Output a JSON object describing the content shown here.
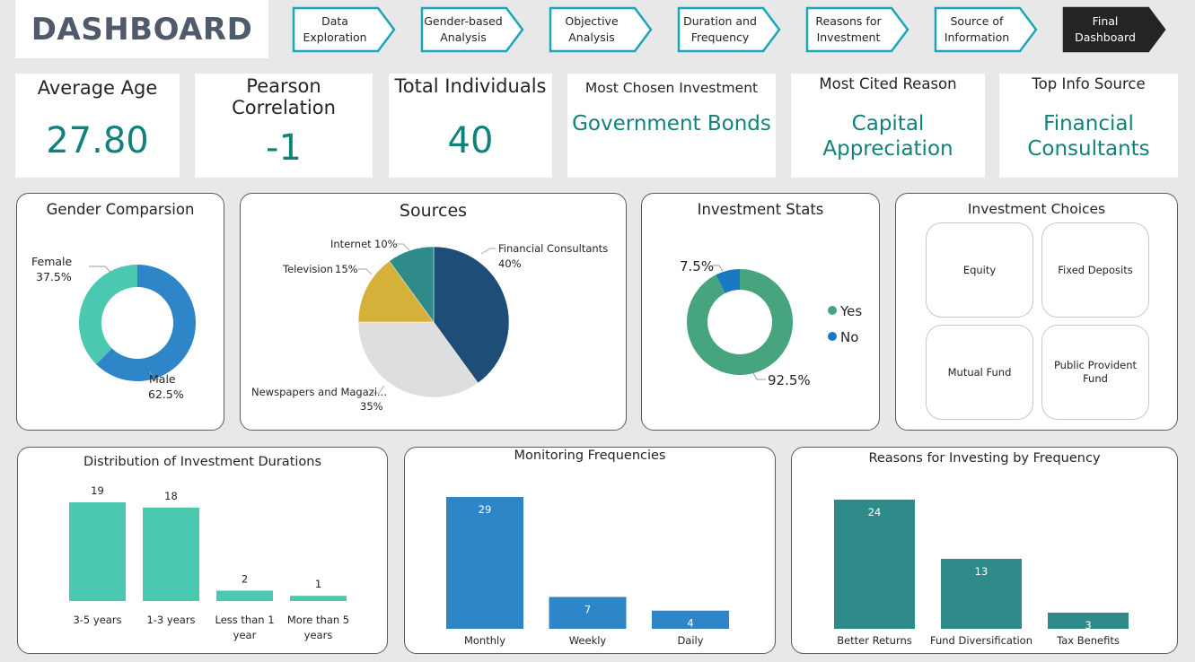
{
  "header": {
    "title": "DASHBOARD",
    "nav": [
      {
        "line1": "Data",
        "line2": "Exploration",
        "active": false
      },
      {
        "line1": "Gender-based",
        "line2": "Analysis",
        "active": false
      },
      {
        "line1": "Objective",
        "line2": "Analysis",
        "active": false
      },
      {
        "line1": "Duration and",
        "line2": "Frequency",
        "active": false
      },
      {
        "line1": "Reasons for",
        "line2": "Investment",
        "active": false
      },
      {
        "line1": "Source of",
        "line2": "Information",
        "active": false
      },
      {
        "line1": "Final",
        "line2": "Dashboard",
        "active": true
      }
    ]
  },
  "kpis": {
    "avg_age": {
      "label": "Average Age",
      "value": "27.80"
    },
    "pearson": {
      "label1": "Pearson",
      "label2": "Correlation",
      "value": "-1"
    },
    "total": {
      "label": "Total Individuals",
      "value": "40"
    },
    "investment": {
      "label": "Most Chosen Investment",
      "value": "Government Bonds"
    },
    "reason": {
      "label": "Most Cited Reason",
      "value1": "Capital",
      "value2": "Appreciation"
    },
    "source": {
      "label": "Top Info Source",
      "value1": "Financial",
      "value2": "Consultants"
    }
  },
  "choices": {
    "title": "Investment Choices",
    "items": [
      "Equity",
      "Fixed Deposits",
      "Mutual Fund",
      "Public Provident Fund"
    ]
  },
  "colors": {
    "teal_kpi": "#11827b",
    "male": "#2e86c8",
    "female": "#4bc9b0",
    "yes": "#46a57e",
    "no": "#1a79c0",
    "duration_bar": "#4bc9b0",
    "monitor_bar": "#2e86c8",
    "reason_bar": "#2e8b89",
    "src_financial": "#1e4d78",
    "src_newspapers": "#dedede",
    "src_television": "#d6b13a",
    "src_internet": "#2e8b89",
    "nav_border": "#19a6b8",
    "nav_active": "#252423"
  },
  "chart_data": [
    {
      "type": "pie",
      "title": "Gender Comparsion",
      "donut": true,
      "categories": [
        "Male",
        "Female"
      ],
      "values": [
        62.5,
        37.5
      ],
      "labels": [
        "62.5%",
        "37.5%"
      ]
    },
    {
      "type": "pie",
      "title": "Sources",
      "categories": [
        "Financial Consultants",
        "Newspapers and Magazi...",
        "Television",
        "Internet"
      ],
      "values": [
        40,
        35,
        15,
        10
      ],
      "labels": [
        "40%",
        "35%",
        "15%",
        "10%"
      ]
    },
    {
      "type": "pie",
      "title": "Investment Stats",
      "donut": true,
      "categories": [
        "Yes",
        "No"
      ],
      "values": [
        92.5,
        7.5
      ],
      "labels": [
        "92.5%",
        "7.5%"
      ],
      "legend": "right"
    },
    {
      "type": "bar",
      "title": "Distribution of Investment Durations",
      "categories": [
        "3-5 years",
        "1-3 years",
        "Less than 1 year",
        "More than 5 years"
      ],
      "category_lines": [
        [
          "3-5 years"
        ],
        [
          "1-3 years"
        ],
        [
          "Less than 1",
          "year"
        ],
        [
          "More than 5",
          "years"
        ]
      ],
      "values": [
        19,
        18,
        2,
        1
      ]
    },
    {
      "type": "bar",
      "title": "Monitoring Frequencies",
      "categories": [
        "Monthly",
        "Weekly",
        "Daily"
      ],
      "values": [
        29,
        7,
        4
      ]
    },
    {
      "type": "bar",
      "title": "Reasons for Investing by Frequency",
      "categories": [
        "Better Returns",
        "Fund Diversification",
        "Tax Benefits"
      ],
      "values": [
        24,
        13,
        3
      ]
    }
  ]
}
